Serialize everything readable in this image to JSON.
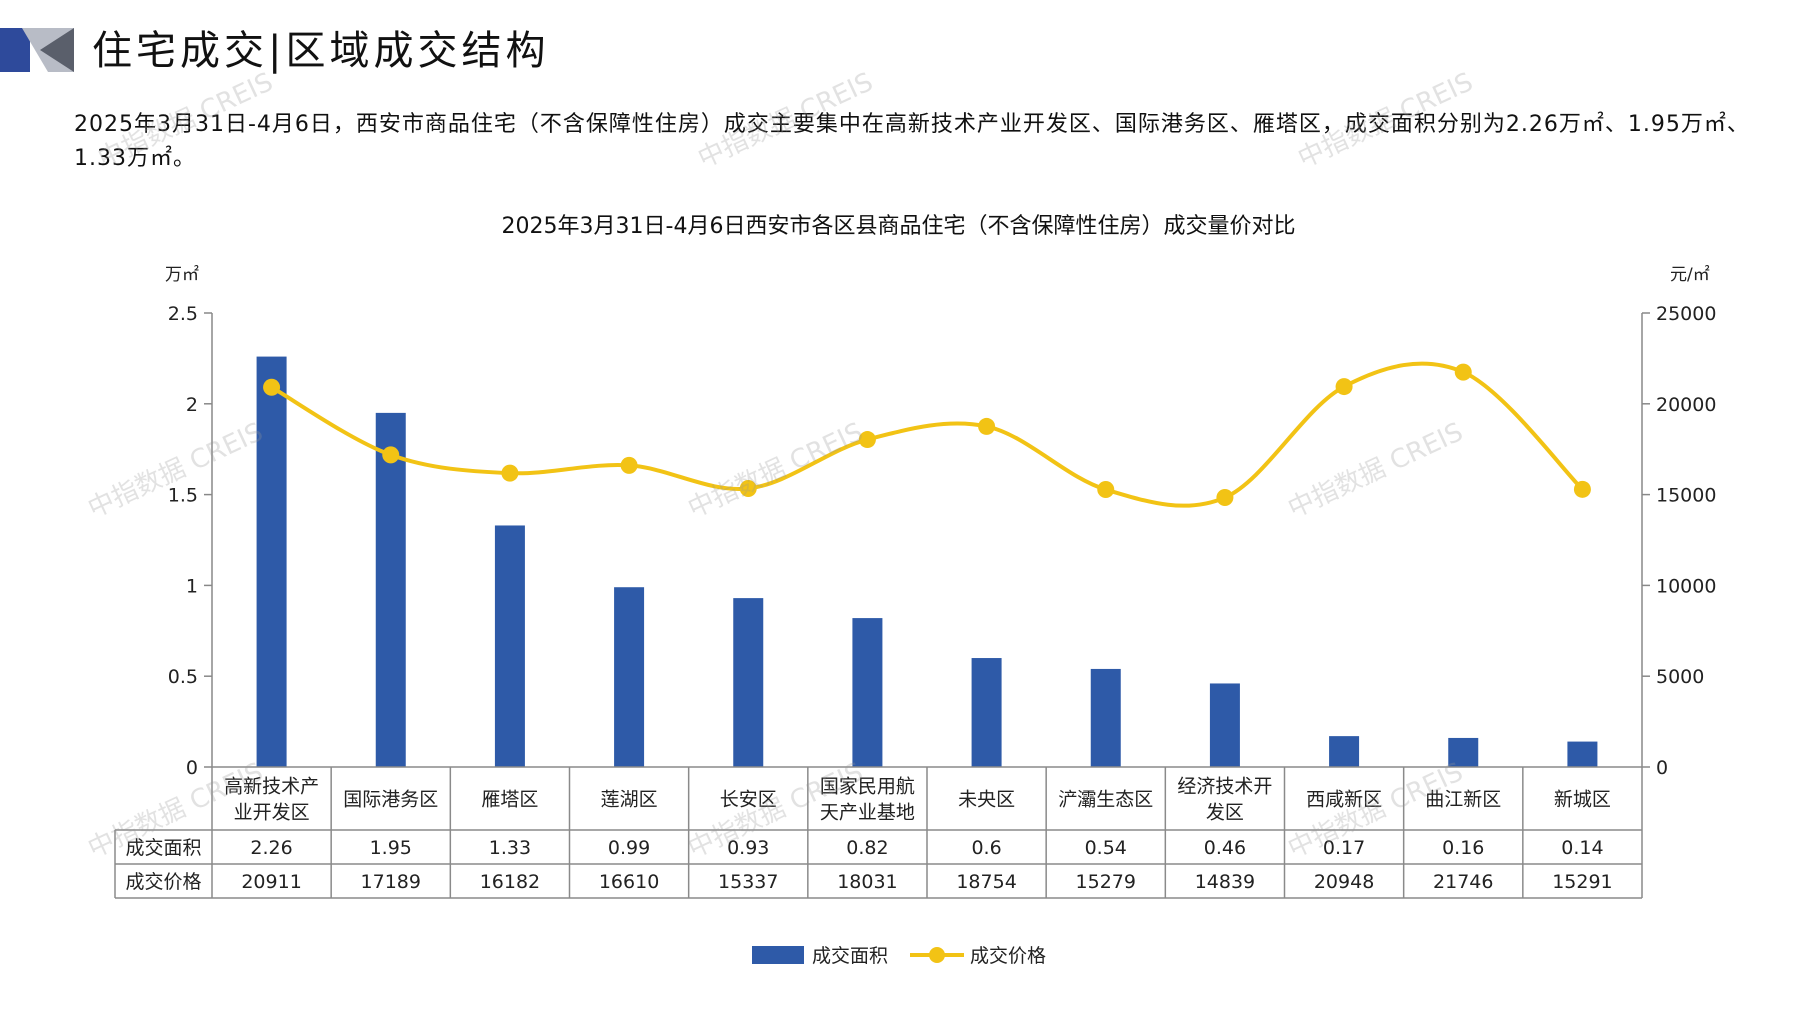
{
  "header": {
    "title": "住宅成交|区域成交结构",
    "summary": "2025年3月31日-4月6日，西安市商品住宅（不含保障性住房）成交主要集中在高新技术产业开发区、国际港务区、雁塔区，成交面积分别为2.26万㎡、1.95万㎡、1.33万㎡。"
  },
  "watermark": "中指数据 CREIS",
  "colors": {
    "bar": "#2e5aa8",
    "line": "#f2c315",
    "axis": "#888888",
    "deco_dark": "#2e4a9b",
    "deco_gray": "#b8bcc6"
  },
  "chart_data": {
    "type": "bar",
    "title": "2025年3月31日-4月6日西安市各区县商品住宅（不含保障性住房）成交量价对比",
    "y_left_unit": "万㎡",
    "y_right_unit": "元/㎡",
    "y_left_ticks": [
      "0",
      "0.5",
      "1",
      "1.5",
      "2",
      "2.5"
    ],
    "y_right_ticks": [
      "0",
      "5000",
      "10000",
      "15000",
      "20000",
      "25000"
    ],
    "ylim_left": [
      0,
      2.5
    ],
    "ylim_right": [
      0,
      25000
    ],
    "categories": [
      "高新技术产业开发区",
      "国际港务区",
      "雁塔区",
      "莲湖区",
      "长安区",
      "国家民用航天产业基地",
      "未央区",
      "浐灞生态区",
      "经济技术开发区",
      "西咸新区",
      "曲江新区",
      "新城区"
    ],
    "category_lines": [
      [
        "高新技术产",
        "业开发区"
      ],
      [
        "国际港务区"
      ],
      [
        "雁塔区"
      ],
      [
        "莲湖区"
      ],
      [
        "长安区"
      ],
      [
        "国家民用航",
        "天产业基地"
      ],
      [
        "未央区"
      ],
      [
        "浐灞生态区"
      ],
      [
        "经济技术开",
        "发区"
      ],
      [
        "西咸新区"
      ],
      [
        "曲江新区"
      ],
      [
        "新城区"
      ]
    ],
    "series": [
      {
        "name": "成交面积",
        "type": "bar",
        "axis": "left",
        "values": [
          2.26,
          1.95,
          1.33,
          0.99,
          0.93,
          0.82,
          0.6,
          0.54,
          0.46,
          0.17,
          0.16,
          0.14
        ],
        "labels": [
          "2.26",
          "1.95",
          "1.33",
          "0.99",
          "0.93",
          "0.82",
          "0.6",
          "0.54",
          "0.46",
          "0.17",
          "0.16",
          "0.14"
        ]
      },
      {
        "name": "成交价格",
        "type": "line",
        "axis": "right",
        "values": [
          20911,
          17189,
          16182,
          16610,
          15337,
          18031,
          18754,
          15279,
          14839,
          20948,
          21746,
          15291
        ],
        "labels": [
          "20911",
          "17189",
          "16182",
          "16610",
          "15337",
          "18031",
          "18754",
          "15279",
          "14839",
          "20948",
          "21746",
          "15291"
        ]
      }
    ],
    "legend": {
      "position": "bottom",
      "items": [
        "成交面积",
        "成交价格"
      ]
    }
  }
}
